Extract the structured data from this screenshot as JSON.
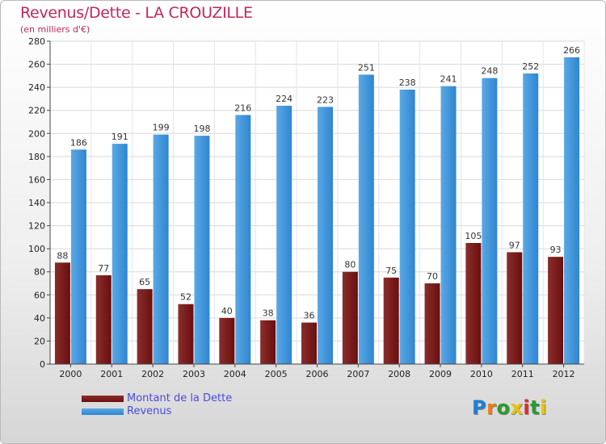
{
  "title": "Revenus/Dette - LA CROUZILLE",
  "subtitle": "(en milliers d'€)",
  "logo": {
    "text": "Proxiti",
    "letter_colors": [
      "#1e7fd6",
      "#ee7a11",
      "#2a9a2f",
      "#e5c400",
      "#d6302a",
      "#2a9a2f",
      "#e5c400"
    ]
  },
  "colors": {
    "dette": "#6b0e0e",
    "dette_light": "#8a2d2d",
    "revenus": "#2f86d0",
    "revenus_light": "#5aa8e6"
  },
  "chart_data": {
    "type": "bar",
    "title": "Revenus/Dette - LA CROUZILLE",
    "subtitle": "(en milliers d'€)",
    "categories": [
      "2000",
      "2001",
      "2002",
      "2003",
      "2004",
      "2005",
      "2006",
      "2007",
      "2008",
      "2009",
      "2010",
      "2011",
      "2012"
    ],
    "series": [
      {
        "name": "Montant de la Dette",
        "values": [
          88,
          77,
          65,
          52,
          40,
          38,
          36,
          80,
          75,
          70,
          105,
          97,
          93
        ]
      },
      {
        "name": "Revenus",
        "values": [
          186,
          191,
          199,
          198,
          216,
          224,
          223,
          251,
          238,
          241,
          248,
          252,
          266
        ]
      }
    ],
    "ylim": [
      0,
      280
    ],
    "yticks": [
      0,
      20,
      40,
      60,
      80,
      100,
      120,
      140,
      160,
      180,
      200,
      220,
      240,
      260,
      280
    ],
    "grid": true,
    "legend_position": "bottom-left"
  }
}
